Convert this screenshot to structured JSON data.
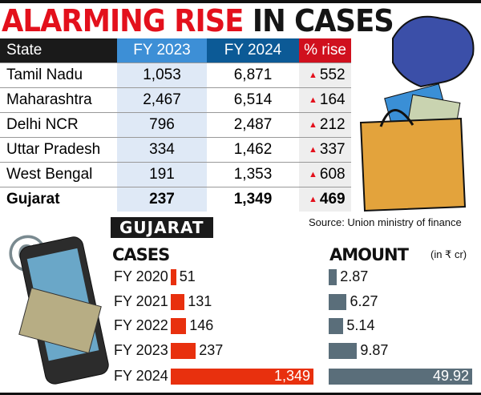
{
  "title": {
    "part1": "ALARMING RISE",
    "part2": "IN CASES"
  },
  "table": {
    "headers": [
      "State",
      "FY 2023",
      "FY 2024",
      "% rise"
    ],
    "rows": [
      {
        "state": "Tamil Nadu",
        "fy2023": "1,053",
        "fy2024": "6,871",
        "rise": "552"
      },
      {
        "state": "Maharashtra",
        "fy2023": "2,467",
        "fy2024": "6,514",
        "rise": "164"
      },
      {
        "state": "Delhi NCR",
        "fy2023": "796",
        "fy2024": "2,487",
        "rise": "212"
      },
      {
        "state": "Uttar Pradesh",
        "fy2023": "334",
        "fy2024": "1,462",
        "rise": "337"
      },
      {
        "state": "West Bengal",
        "fy2023": "191",
        "fy2024": "1,353",
        "rise": "608"
      },
      {
        "state": "Gujarat",
        "fy2023": "237",
        "fy2024": "1,349",
        "rise": "469"
      }
    ],
    "up_icon": "triangle-up-icon"
  },
  "source": "Source: Union ministry of finance",
  "section_label": "GUJARAT",
  "colors": {
    "cases": "#e8300e",
    "amount": "#5a6e7a",
    "fy2023_header": "#3d8fd6",
    "fy2024_header": "#0c5a96",
    "rise_header": "#d0101e"
  },
  "chart_data": [
    {
      "type": "bar",
      "title": "CASES",
      "categories": [
        "FY 2020",
        "FY 2021",
        "FY 2022",
        "FY 2023",
        "FY 2024"
      ],
      "values": [
        51,
        131,
        146,
        237,
        1349
      ],
      "labels": [
        "51",
        "131",
        "146",
        "237",
        "1,349"
      ],
      "orientation": "horizontal"
    },
    {
      "type": "bar",
      "title": "AMOUNT",
      "unit": "(in ₹ cr)",
      "categories": [
        "FY 2020",
        "FY 2021",
        "FY 2022",
        "FY 2023",
        "FY 2024"
      ],
      "values": [
        2.87,
        6.27,
        5.14,
        9.87,
        49.92
      ],
      "labels": [
        "2.87",
        "6.27",
        "5.14",
        "9.87",
        "49.92"
      ],
      "orientation": "horizontal"
    }
  ]
}
